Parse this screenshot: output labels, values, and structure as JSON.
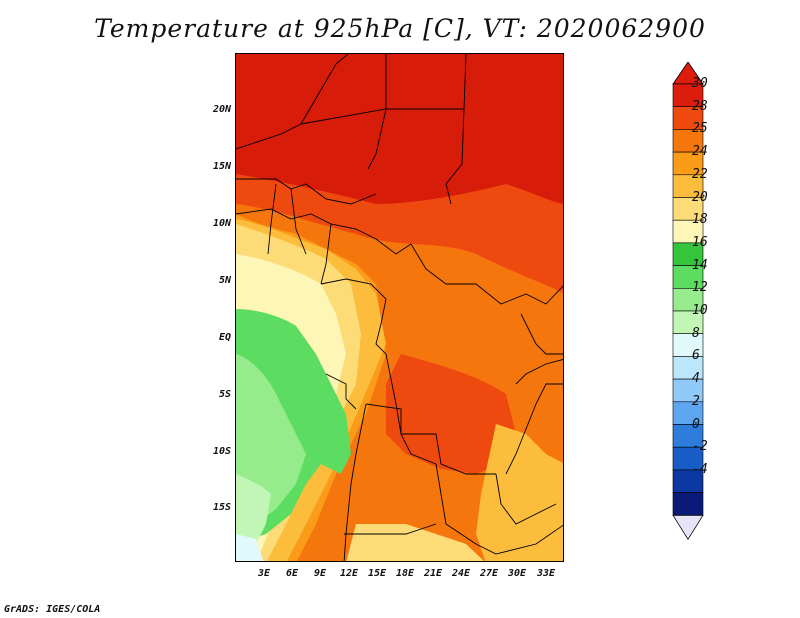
{
  "title": "Temperature at 925hPa [C], VT: 2020062900",
  "credit": "GrADS: IGES/COLA",
  "lat_labels": [
    "20N",
    "15N",
    "10N",
    "5N",
    "EQ",
    "5S",
    "10S",
    "15S"
  ],
  "lon_labels": [
    "3E",
    "6E",
    "9E",
    "12E",
    "15E",
    "18E",
    "21E",
    "24E",
    "27E",
    "30E",
    "33E"
  ],
  "colorbar": {
    "labels": [
      "30",
      "28",
      "25",
      "24",
      "22",
      "20",
      "18",
      "16",
      "14",
      "12",
      "10",
      "8",
      "6",
      "4",
      "2",
      "0",
      "-2",
      "-4"
    ],
    "colors": [
      "#dc1c0c",
      "#ee4a10",
      "#f6760e",
      "#fa9c18",
      "#fcbc3c",
      "#fddc78",
      "#fdf6b6",
      "#36c43c",
      "#5cdc60",
      "#96ec8c",
      "#c2f6b6",
      "#e0fafc",
      "#bce6fc",
      "#90caf8",
      "#5ea6ef",
      "#2e7ddc",
      "#185cc8",
      "#0c38a4",
      "#0a1a78"
    ],
    "top_color": "#dc1c0c",
    "bottom_color": "#e8e4f8"
  },
  "map_colors": {
    "hot": "#d81c0a",
    "warm": "#ee4a10",
    "orange": "#f6760e",
    "amber": "#fa9c18",
    "gold": "#fcbc3c",
    "pale": "#fddc78",
    "cream": "#fdf6b6",
    "green": "#5cdc60",
    "lightgreen": "#96ec8c",
    "palegreen": "#c2f6b6",
    "ice": "#e0fafc"
  }
}
